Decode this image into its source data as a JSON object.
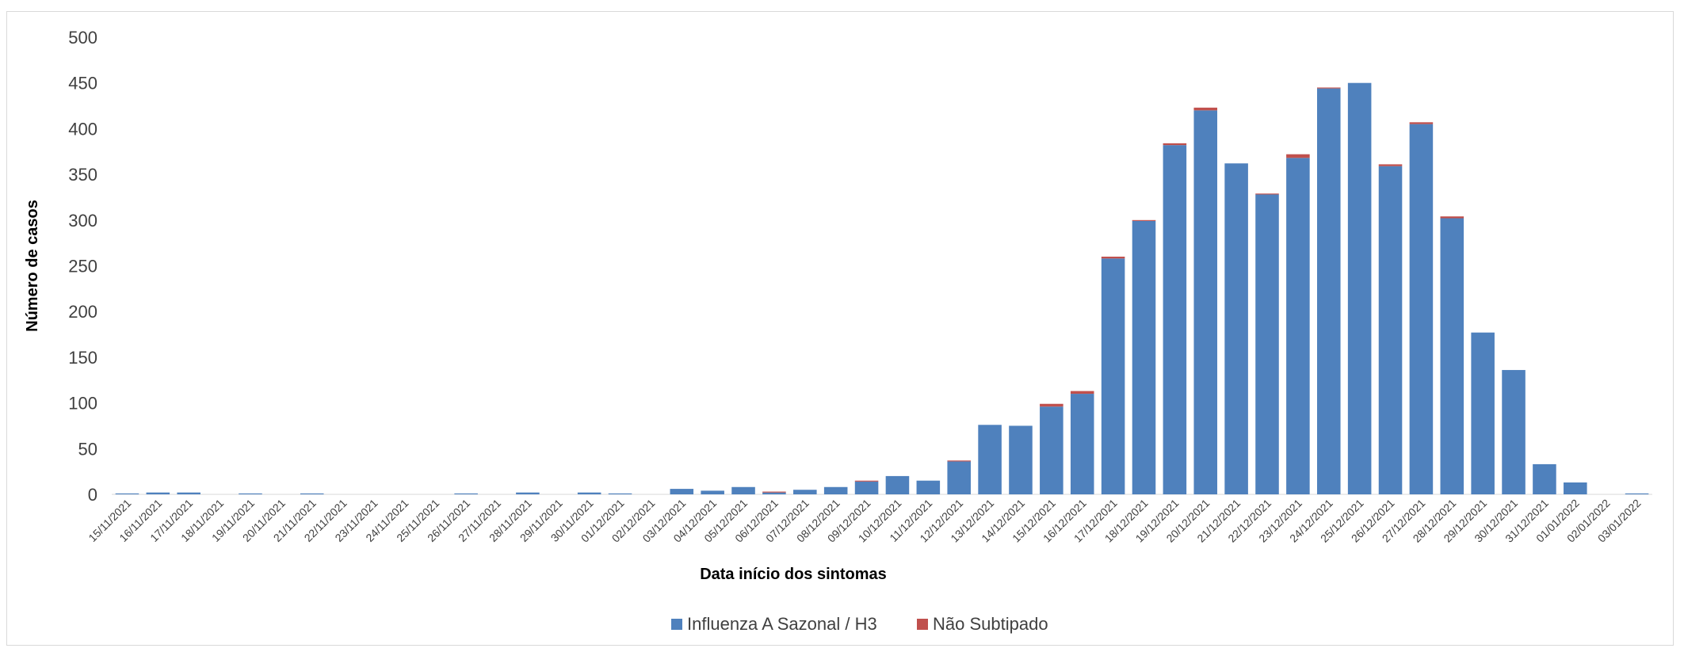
{
  "chart_data": {
    "type": "bar",
    "stacked": true,
    "xlabel": "Data início dos sintomas",
    "ylabel": "Número de casos",
    "ylim": [
      0,
      500
    ],
    "yticks": [
      0,
      50,
      100,
      150,
      200,
      250,
      300,
      350,
      400,
      450,
      500
    ],
    "grid": false,
    "legend_position": "bottom",
    "categories": [
      "15/11/2021",
      "16/11/2021",
      "17/11/2021",
      "18/11/2021",
      "19/11/2021",
      "20/11/2021",
      "21/11/2021",
      "22/11/2021",
      "23/11/2021",
      "24/11/2021",
      "25/11/2021",
      "26/11/2021",
      "27/11/2021",
      "28/11/2021",
      "29/11/2021",
      "30/11/2021",
      "01/12/2021",
      "02/12/2021",
      "03/12/2021",
      "04/12/2021",
      "05/12/2021",
      "06/12/2021",
      "07/12/2021",
      "08/12/2021",
      "09/12/2021",
      "10/12/2021",
      "11/12/2021",
      "12/12/2021",
      "13/12/2021",
      "14/12/2021",
      "15/12/2021",
      "16/12/2021",
      "17/12/2021",
      "18/12/2021",
      "19/12/2021",
      "20/12/2021",
      "21/12/2021",
      "22/12/2021",
      "23/12/2021",
      "24/12/2021",
      "25/12/2021",
      "26/12/2021",
      "27/12/2021",
      "28/12/2021",
      "29/12/2021",
      "30/12/2021",
      "31/12/2021",
      "01/01/2022",
      "02/01/2022",
      "03/01/2022"
    ],
    "series": [
      {
        "name": "Influenza A Sazonal / H3",
        "color": "#4f81bd",
        "values": [
          1,
          2,
          2,
          0,
          1,
          0,
          1,
          0,
          0,
          0,
          0,
          1,
          0,
          2,
          0,
          2,
          1,
          0,
          6,
          4,
          8,
          2,
          5,
          8,
          14,
          20,
          15,
          36,
          76,
          75,
          96,
          110,
          258,
          299,
          382,
          420,
          362,
          328,
          368,
          444,
          450,
          359,
          405,
          302,
          177,
          136,
          33,
          13,
          0,
          1
        ]
      },
      {
        "name": "Não Subtipado",
        "color": "#c0504d",
        "values": [
          0,
          0,
          0,
          0,
          0,
          0,
          0,
          0,
          0,
          0,
          0,
          0,
          0,
          0,
          0,
          0,
          0,
          0,
          0,
          0,
          0,
          1,
          0,
          0,
          1,
          0,
          0,
          1,
          0,
          0,
          3,
          3,
          2,
          1,
          2,
          3,
          0,
          1,
          4,
          1,
          0,
          2,
          2,
          2,
          0,
          0,
          0,
          0,
          0,
          0
        ]
      }
    ]
  }
}
